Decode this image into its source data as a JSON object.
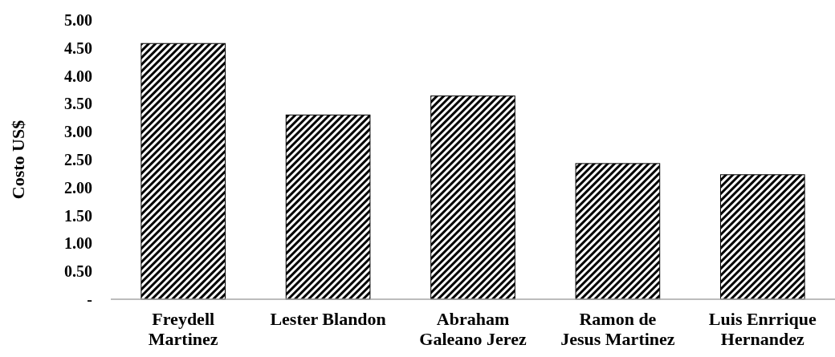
{
  "chart_data": {
    "type": "bar",
    "ylabel": "Costo US$",
    "categories": [
      "Freydell Martinez",
      "Lester Blandon",
      "Abraham Galeano Jerez",
      "Ramon de Jesus Martinez",
      "Luis Enrrique Hernandez"
    ],
    "values": [
      4.58,
      3.3,
      3.64,
      2.43,
      2.23
    ],
    "color": "#000000",
    "ylim": [
      0,
      5
    ],
    "yticks": [
      {
        "value": 0,
        "label": "-"
      },
      {
        "value": 0.5,
        "label": "0.50"
      },
      {
        "value": 1,
        "label": "1.00"
      },
      {
        "value": 1.5,
        "label": "1.50"
      },
      {
        "value": 2,
        "label": "2.00"
      },
      {
        "value": 2.5,
        "label": "2.50"
      },
      {
        "value": 3,
        "label": "3.00"
      },
      {
        "value": 3.5,
        "label": "3.50"
      },
      {
        "value": 4,
        "label": "4.00"
      },
      {
        "value": 4.5,
        "label": "4.50"
      },
      {
        "value": 5,
        "label": "5.00"
      }
    ],
    "grid": false
  }
}
